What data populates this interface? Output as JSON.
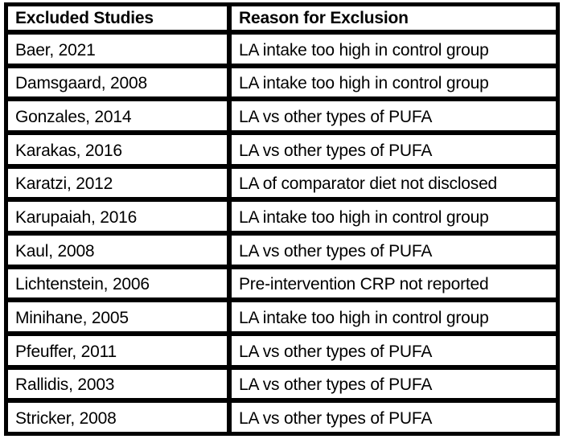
{
  "colors": {
    "border": "#000000",
    "text": "#000000",
    "background": "#ffffff"
  },
  "table": {
    "columns": [
      "Excluded Studies",
      "Reason for Exclusion"
    ],
    "rows": [
      {
        "study": "Baer, 2021",
        "reason": "LA intake too high in control group"
      },
      {
        "study": "Damsgaard, 2008",
        "reason": "LA intake too high in control group"
      },
      {
        "study": "Gonzales, 2014",
        "reason": "LA vs other types of PUFA"
      },
      {
        "study": "Karakas, 2016",
        "reason": "LA vs other types of PUFA"
      },
      {
        "study": "Karatzi, 2012",
        "reason": "LA of comparator diet not disclosed"
      },
      {
        "study": "Karupaiah, 2016",
        "reason": "LA intake too high in control group"
      },
      {
        "study": "Kaul, 2008",
        "reason": "LA vs other types of PUFA"
      },
      {
        "study": "Lichtenstein, 2006",
        "reason": "Pre-intervention CRP not reported"
      },
      {
        "study": "Minihane, 2005",
        "reason": "LA intake too high in control group"
      },
      {
        "study": "Pfeuffer, 2011",
        "reason": "LA vs other types of PUFA"
      },
      {
        "study": "Rallidis, 2003",
        "reason": "LA vs other types of PUFA"
      },
      {
        "study": "Stricker, 2008",
        "reason": "LA vs other types of PUFA"
      }
    ]
  }
}
